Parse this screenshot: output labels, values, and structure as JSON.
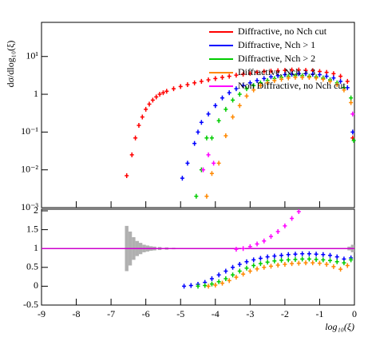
{
  "chart_data": [
    {
      "type": "scatter",
      "ylabel": "dσ/dlog₁₀(ξ)",
      "log_y": true,
      "ylim": [
        0.001,
        80
      ],
      "yticks": [
        {
          "value": 0.001,
          "label": "10⁻³"
        },
        {
          "value": 0.01,
          "label": "10⁻²"
        },
        {
          "value": 0.1,
          "label": "10⁻¹"
        },
        1,
        {
          "value": 10,
          "label": "10¹"
        }
      ],
      "xlim": [
        -9,
        0
      ],
      "xticks": [
        -9,
        -8,
        -7,
        -6,
        -5,
        -4,
        -3,
        -2,
        -1,
        0
      ],
      "legend": "upper right",
      "series": [
        {
          "name": "Diffractive, no Nch cut",
          "color": "#ff0000",
          "x": [
            -6.55,
            -6.4,
            -6.3,
            -6.2,
            -6.1,
            -6.0,
            -5.9,
            -5.8,
            -5.7,
            -5.6,
            -5.5,
            -5.4,
            -5.2,
            -5.0,
            -4.8,
            -4.6,
            -4.4,
            -4.2,
            -4.0,
            -3.8,
            -3.6,
            -3.4,
            -3.2,
            -3.0,
            -2.8,
            -2.6,
            -2.4,
            -2.2,
            -2.0,
            -1.8,
            -1.6,
            -1.4,
            -1.2,
            -1.0,
            -0.8,
            -0.6,
            -0.4,
            -0.2,
            -0.05
          ],
          "values": [
            0.007,
            0.025,
            0.07,
            0.15,
            0.25,
            0.4,
            0.55,
            0.7,
            0.85,
            1.0,
            1.1,
            1.2,
            1.4,
            1.6,
            1.8,
            2.0,
            2.2,
            2.4,
            2.6,
            2.8,
            3.0,
            3.2,
            3.4,
            3.6,
            3.8,
            4.0,
            4.1,
            4.2,
            4.3,
            4.4,
            4.4,
            4.3,
            4.2,
            4.0,
            3.8,
            3.5,
            3.0,
            2.2,
            0.07
          ]
        },
        {
          "name": "Diffractive, Nch > 1",
          "color": "#0000ff",
          "x": [
            -4.95,
            -4.8,
            -4.6,
            -4.5,
            -4.4,
            -4.2,
            -4.0,
            -3.8,
            -3.6,
            -3.4,
            -3.2,
            -3.0,
            -2.8,
            -2.6,
            -2.4,
            -2.2,
            -2.0,
            -1.8,
            -1.6,
            -1.4,
            -1.2,
            -1.0,
            -0.8,
            -0.6,
            -0.4,
            -0.2,
            -0.05
          ],
          "values": [
            0.006,
            0.015,
            0.05,
            0.1,
            0.18,
            0.3,
            0.5,
            0.8,
            1.1,
            1.4,
            1.7,
            2.0,
            2.3,
            2.6,
            2.9,
            3.1,
            3.3,
            3.4,
            3.5,
            3.5,
            3.4,
            3.3,
            3.0,
            2.7,
            2.2,
            1.5,
            0.1
          ]
        },
        {
          "name": "Diffractive, Nch > 2",
          "color": "#00cc00",
          "x": [
            -4.55,
            -4.4,
            -4.25,
            -4.1,
            -3.9,
            -3.7,
            -3.5,
            -3.3,
            -3.1,
            -2.9,
            -2.7,
            -2.5,
            -2.3,
            -2.1,
            -1.9,
            -1.7,
            -1.5,
            -1.3,
            -1.1,
            -0.9,
            -0.7,
            -0.5,
            -0.3,
            -0.1,
            -0.02
          ],
          "values": [
            0.002,
            0.01,
            0.07,
            0.07,
            0.2,
            0.4,
            0.7,
            1.0,
            1.4,
            1.7,
            2.0,
            2.3,
            2.6,
            2.8,
            3.0,
            3.1,
            3.1,
            3.0,
            2.9,
            2.7,
            2.4,
            2.0,
            1.5,
            0.8,
            0.06
          ]
        },
        {
          "name": "Diffractive, Nch > 3",
          "color": "#ff8800",
          "x": [
            -4.25,
            -4.1,
            -3.9,
            -3.7,
            -3.5,
            -3.3,
            -3.1,
            -2.9,
            -2.7,
            -2.5,
            -2.3,
            -2.1,
            -1.9,
            -1.7,
            -1.5,
            -1.3,
            -1.1,
            -0.9,
            -0.7,
            -0.5,
            -0.3,
            -0.1
          ],
          "values": [
            0.002,
            0.008,
            0.015,
            0.08,
            0.25,
            0.5,
            0.9,
            1.3,
            1.7,
            2.0,
            2.3,
            2.5,
            2.7,
            2.8,
            2.8,
            2.8,
            2.7,
            2.5,
            2.2,
            1.8,
            1.3,
            0.6
          ]
        },
        {
          "name": "Non Diffractive, no Nch cut",
          "color": "#ff00ff",
          "x": [
            -4.35,
            -4.2,
            -4.05,
            -0.05
          ],
          "values": [
            0.01,
            0.025,
            0.015,
            0.3
          ]
        }
      ]
    },
    {
      "type": "scatter",
      "log_y": false,
      "ylim": [
        -0.5,
        2
      ],
      "yticks": [
        -0.5,
        0,
        0.5,
        1,
        1.5,
        2
      ],
      "xlim": [
        -9,
        0
      ],
      "xticks": [
        -9,
        -8,
        -7,
        -6,
        -5,
        -4,
        -3,
        -2,
        -1,
        0
      ],
      "xlabel": "log₁₀(ξ)",
      "reference_line": {
        "value": 1,
        "color": "#cc00cc"
      },
      "band": {
        "color": "#b0b0b0",
        "x": [
          -6.55,
          -6.45,
          -6.35,
          -6.25,
          -6.15,
          -6.05,
          -5.95,
          -5.85,
          -5.75,
          -5.6,
          -5.4,
          -5.2,
          -5.0,
          -4.8,
          -4.6,
          -0.15,
          -0.05
        ],
        "values": [
          0.6,
          0.45,
          0.3,
          0.2,
          0.15,
          0.1,
          0.08,
          0.06,
          0.05,
          0.04,
          0.03,
          0.02,
          0.015,
          0.01,
          0.01,
          0.05,
          0.1
        ]
      },
      "series": [
        {
          "color": "#0000ff",
          "x": [
            -4.9,
            -4.7,
            -4.5,
            -4.3,
            -4.1,
            -3.9,
            -3.7,
            -3.5,
            -3.3,
            -3.1,
            -2.9,
            -2.7,
            -2.5,
            -2.3,
            -2.1,
            -1.9,
            -1.7,
            -1.5,
            -1.3,
            -1.1,
            -0.9,
            -0.7,
            -0.5,
            -0.3,
            -0.1
          ],
          "values": [
            0.0,
            0.02,
            0.05,
            0.1,
            0.2,
            0.3,
            0.4,
            0.5,
            0.58,
            0.65,
            0.7,
            0.74,
            0.78,
            0.8,
            0.82,
            0.84,
            0.85,
            0.86,
            0.86,
            0.85,
            0.84,
            0.82,
            0.78,
            0.72,
            0.75
          ]
        },
        {
          "color": "#00cc00",
          "x": [
            -4.5,
            -4.3,
            -4.1,
            -3.9,
            -3.7,
            -3.5,
            -3.3,
            -3.1,
            -2.9,
            -2.7,
            -2.5,
            -2.3,
            -2.1,
            -1.9,
            -1.7,
            -1.5,
            -1.3,
            -1.1,
            -0.9,
            -0.7,
            -0.5,
            -0.3,
            -0.1
          ],
          "values": [
            0.0,
            0.02,
            0.06,
            0.12,
            0.2,
            0.3,
            0.4,
            0.48,
            0.55,
            0.6,
            0.64,
            0.67,
            0.69,
            0.7,
            0.71,
            0.72,
            0.72,
            0.71,
            0.7,
            0.68,
            0.65,
            0.62,
            0.7
          ]
        },
        {
          "color": "#ff8800",
          "x": [
            -4.2,
            -4.0,
            -3.8,
            -3.6,
            -3.4,
            -3.2,
            -3.0,
            -2.8,
            -2.6,
            -2.4,
            -2.2,
            -2.0,
            -1.8,
            -1.6,
            -1.4,
            -1.2,
            -1.0,
            -0.8,
            -0.6,
            -0.4,
            -0.2
          ],
          "values": [
            0.0,
            0.03,
            0.08,
            0.15,
            0.24,
            0.32,
            0.4,
            0.46,
            0.5,
            0.53,
            0.56,
            0.58,
            0.6,
            0.61,
            0.62,
            0.62,
            0.61,
            0.58,
            0.52,
            0.45,
            0.55
          ]
        },
        {
          "color": "#ff00ff",
          "x": [
            -3.4,
            -3.2,
            -3.0,
            -2.8,
            -2.6,
            -2.4,
            -2.2,
            -2.0,
            -1.8,
            -1.6
          ],
          "values": [
            0.98,
            1.0,
            1.05,
            1.12,
            1.2,
            1.32,
            1.45,
            1.6,
            1.8,
            1.98
          ]
        }
      ]
    }
  ]
}
